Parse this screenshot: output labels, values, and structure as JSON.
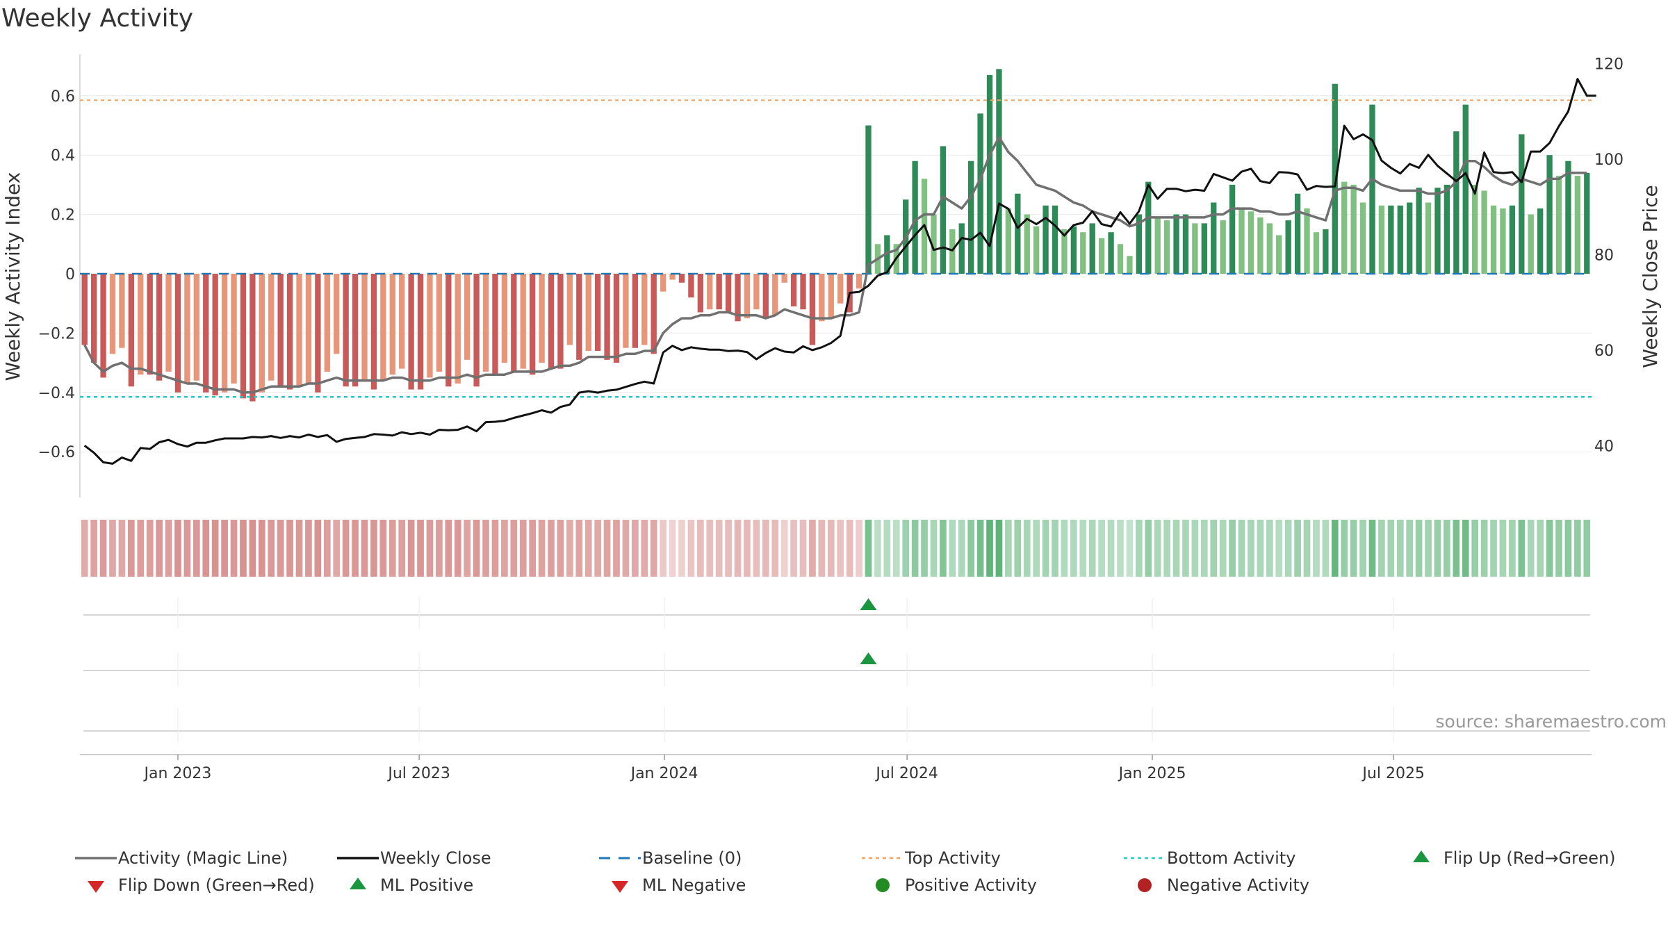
{
  "chart_data": {
    "type": "bar",
    "title": "Weekly Activity",
    "source": "source: sharemaestro.com",
    "ylabel_left": "Weekly Activity Index",
    "ylabel_right": "Weekly Close Price",
    "ylim_left": [
      -0.74,
      0.74
    ],
    "ylim_right": [
      30,
      122
    ],
    "yticks_left": [
      {
        "v": -0.6,
        "label": "−0.6"
      },
      {
        "v": -0.4,
        "label": "−0.4"
      },
      {
        "v": -0.2,
        "label": "−0.2"
      },
      {
        "v": 0,
        "label": "0"
      },
      {
        "v": 0.2,
        "label": "0.2"
      },
      {
        "v": 0.4,
        "label": "0.4"
      },
      {
        "v": 0.6,
        "label": "0.6"
      }
    ],
    "yticks_right": [
      {
        "v": 40,
        "label": "40"
      },
      {
        "v": 60,
        "label": "60"
      },
      {
        "v": 80,
        "label": "80"
      },
      {
        "v": 100,
        "label": "100"
      },
      {
        "v": 120,
        "label": "120"
      }
    ],
    "xticks": [
      {
        "date": "2023-01-01",
        "label": "Jan 2023"
      },
      {
        "date": "2023-07-01",
        "label": "Jul 2023"
      },
      {
        "date": "2024-01-01",
        "label": "Jan 2024"
      },
      {
        "date": "2024-07-01",
        "label": "Jul 2024"
      },
      {
        "date": "2025-01-01",
        "label": "Jan 2025"
      },
      {
        "date": "2025-07-01",
        "label": "Jul 2025"
      }
    ],
    "start_date": "2022-10-23",
    "top_activity": 0.585,
    "bottom_activity": -0.415,
    "baseline": 0,
    "colors": {
      "neg_strong": "#c85a5a",
      "neg_light": "#e8967a",
      "pos_strong": "#2e8b57",
      "pos_light": "#80c080",
      "magic_line": "#707070",
      "close_line": "#111111",
      "baseline": "#1f77b4",
      "top": "#f4a460",
      "bottom": "#22cccc",
      "marker_green": "#1a9641",
      "marker_red": "#d62728",
      "dot_green": "#228b22",
      "dot_red": "#b22222"
    },
    "activity": [
      -0.24,
      -0.3,
      -0.35,
      -0.27,
      -0.25,
      -0.38,
      -0.34,
      -0.34,
      -0.36,
      -0.33,
      -0.4,
      -0.37,
      -0.36,
      -0.4,
      -0.41,
      -0.4,
      -0.37,
      -0.42,
      -0.43,
      -0.4,
      -0.36,
      -0.38,
      -0.39,
      -0.38,
      -0.37,
      -0.4,
      -0.33,
      -0.27,
      -0.38,
      -0.38,
      -0.36,
      -0.39,
      -0.36,
      -0.34,
      -0.32,
      -0.39,
      -0.39,
      -0.35,
      -0.33,
      -0.38,
      -0.37,
      -0.29,
      -0.38,
      -0.33,
      -0.34,
      -0.3,
      -0.33,
      -0.32,
      -0.34,
      -0.3,
      -0.32,
      -0.32,
      -0.24,
      -0.29,
      -0.26,
      -0.26,
      -0.29,
      -0.3,
      -0.25,
      -0.25,
      -0.24,
      -0.27,
      -0.06,
      -0.02,
      -0.03,
      -0.08,
      -0.13,
      -0.12,
      -0.12,
      -0.13,
      -0.16,
      -0.15,
      -0.12,
      -0.15,
      -0.14,
      -0.03,
      -0.11,
      -0.12,
      -0.24,
      -0.16,
      -0.15,
      -0.1,
      -0.13,
      -0.05,
      0.5,
      0.1,
      0.13,
      0.1,
      0.25,
      0.38,
      0.32,
      0.2,
      0.43,
      0.15,
      0.17,
      0.38,
      0.54,
      0.67,
      0.69,
      0.22,
      0.27,
      0.2,
      0.16,
      0.23,
      0.23,
      0.15,
      0.16,
      0.14,
      0.17,
      0.12,
      0.14,
      0.1,
      0.06,
      0.2,
      0.31,
      0.19,
      0.18,
      0.2,
      0.2,
      0.17,
      0.17,
      0.24,
      0.18,
      0.3,
      0.22,
      0.21,
      0.19,
      0.17,
      0.13,
      0.18,
      0.27,
      0.22,
      0.14,
      0.15,
      0.64,
      0.31,
      0.3,
      0.24,
      0.57,
      0.23,
      0.23,
      0.23,
      0.24,
      0.29,
      0.24,
      0.29,
      0.3,
      0.48,
      0.57,
      0.3,
      0.28,
      0.23,
      0.22,
      0.23,
      0.47,
      0.2,
      0.22,
      0.4,
      0.33,
      0.38,
      0.33,
      0.34
    ],
    "magic_line": [
      -0.24,
      -0.3,
      -0.33,
      -0.31,
      -0.3,
      -0.32,
      -0.32,
      -0.33,
      -0.34,
      -0.35,
      -0.36,
      -0.37,
      -0.37,
      -0.38,
      -0.39,
      -0.39,
      -0.39,
      -0.4,
      -0.4,
      -0.39,
      -0.38,
      -0.38,
      -0.38,
      -0.38,
      -0.37,
      -0.37,
      -0.36,
      -0.35,
      -0.36,
      -0.36,
      -0.36,
      -0.36,
      -0.36,
      -0.35,
      -0.35,
      -0.36,
      -0.36,
      -0.36,
      -0.35,
      -0.35,
      -0.35,
      -0.34,
      -0.35,
      -0.34,
      -0.34,
      -0.34,
      -0.33,
      -0.33,
      -0.33,
      -0.33,
      -0.32,
      -0.31,
      -0.31,
      -0.3,
      -0.28,
      -0.28,
      -0.28,
      -0.28,
      -0.27,
      -0.27,
      -0.26,
      -0.26,
      -0.2,
      -0.17,
      -0.15,
      -0.15,
      -0.14,
      -0.14,
      -0.13,
      -0.13,
      -0.14,
      -0.14,
      -0.14,
      -0.15,
      -0.14,
      -0.12,
      -0.13,
      -0.14,
      -0.15,
      -0.15,
      -0.15,
      -0.14,
      -0.14,
      -0.13,
      0.03,
      0.05,
      0.07,
      0.08,
      0.12,
      0.18,
      0.2,
      0.2,
      0.26,
      0.24,
      0.22,
      0.26,
      0.32,
      0.4,
      0.46,
      0.41,
      0.38,
      0.34,
      0.3,
      0.29,
      0.28,
      0.26,
      0.24,
      0.23,
      0.21,
      0.2,
      0.19,
      0.18,
      0.16,
      0.17,
      0.19,
      0.19,
      0.19,
      0.19,
      0.19,
      0.19,
      0.19,
      0.2,
      0.2,
      0.22,
      0.22,
      0.22,
      0.21,
      0.21,
      0.2,
      0.2,
      0.21,
      0.2,
      0.19,
      0.18,
      0.28,
      0.29,
      0.29,
      0.28,
      0.32,
      0.3,
      0.29,
      0.28,
      0.28,
      0.28,
      0.27,
      0.27,
      0.28,
      0.31,
      0.38,
      0.38,
      0.36,
      0.33,
      0.31,
      0.3,
      0.32,
      0.31,
      0.3,
      0.32,
      0.32,
      0.34,
      0.34,
      0.34
    ],
    "weekly_close": [
      40,
      38.5,
      36.5,
      36.2,
      37.5,
      36.8,
      39.5,
      39.3,
      40.7,
      41.2,
      40.3,
      39.8,
      40.6,
      40.6,
      41.1,
      41.5,
      41.5,
      41.5,
      41.8,
      41.7,
      42,
      41.6,
      42,
      41.7,
      42.3,
      41.8,
      42.2,
      40.8,
      41.4,
      41.6,
      41.8,
      42.4,
      42.3,
      42.1,
      42.8,
      42.4,
      42.7,
      42.3,
      43.3,
      43.2,
      43.3,
      44,
      43,
      44.9,
      45,
      45.2,
      45.8,
      46.3,
      46.8,
      47.4,
      46.9,
      48.1,
      48.6,
      51.1,
      51.4,
      51.1,
      51.5,
      51.7,
      52.3,
      52.9,
      53.4,
      53,
      59.5,
      60.9,
      60,
      60.6,
      60.3,
      60.1,
      60.1,
      59.8,
      59.9,
      59.6,
      58.1,
      59.4,
      60.4,
      59.7,
      59.5,
      60.8,
      60,
      60.6,
      61.5,
      63,
      72,
      72.2,
      73.5,
      75.6,
      76.3,
      79.3,
      81.7,
      84.1,
      86.2,
      81,
      81.5,
      80.9,
      83.5,
      83.1,
      84.6,
      81.8,
      90.7,
      89.6,
      85.6,
      87.5,
      86.4,
      87.7,
      86.1,
      84,
      86.2,
      86.7,
      89.1,
      86.4,
      85.9,
      88.9,
      86.5,
      89.1,
      94.6,
      91.7,
      93.8,
      93.8,
      93.3,
      93.6,
      93.4,
      96.9,
      96.2,
      95.5,
      97.4,
      98,
      95.4,
      95,
      97.3,
      97.2,
      96.8,
      93.6,
      94.4,
      94.2,
      94.3,
      107,
      104.2,
      105.2,
      104,
      99.7,
      98.2,
      97,
      99,
      98.2,
      100.9,
      98.6,
      97,
      95.4,
      97.1,
      92.8,
      101.4,
      97.3,
      97.1,
      97.3,
      95.2,
      101.6,
      101.6,
      103.4,
      106.9,
      110,
      116.8,
      113.3,
      113.3
    ],
    "flip_up_index": 84,
    "ml_positive_index": 84,
    "legend": [
      {
        "label": "Activity (Magic Line)",
        "kind": "line-gray"
      },
      {
        "label": "Weekly Close",
        "kind": "line-black"
      },
      {
        "label": "Baseline (0)",
        "kind": "dash-blue"
      },
      {
        "label": "Top Activity",
        "kind": "dot-orange"
      },
      {
        "label": "Bottom Activity",
        "kind": "dot-cyan"
      },
      {
        "label": "Flip Up (Red→Green)",
        "kind": "tri-up-green"
      },
      {
        "label": "Flip Down (Green→Red)",
        "kind": "tri-down-red"
      },
      {
        "label": "ML Positive",
        "kind": "tri-up-green"
      },
      {
        "label": "ML Negative",
        "kind": "tri-down-red"
      },
      {
        "label": "Positive Activity",
        "kind": "dot-green"
      },
      {
        "label": "Negative Activity",
        "kind": "dot-red"
      }
    ]
  }
}
